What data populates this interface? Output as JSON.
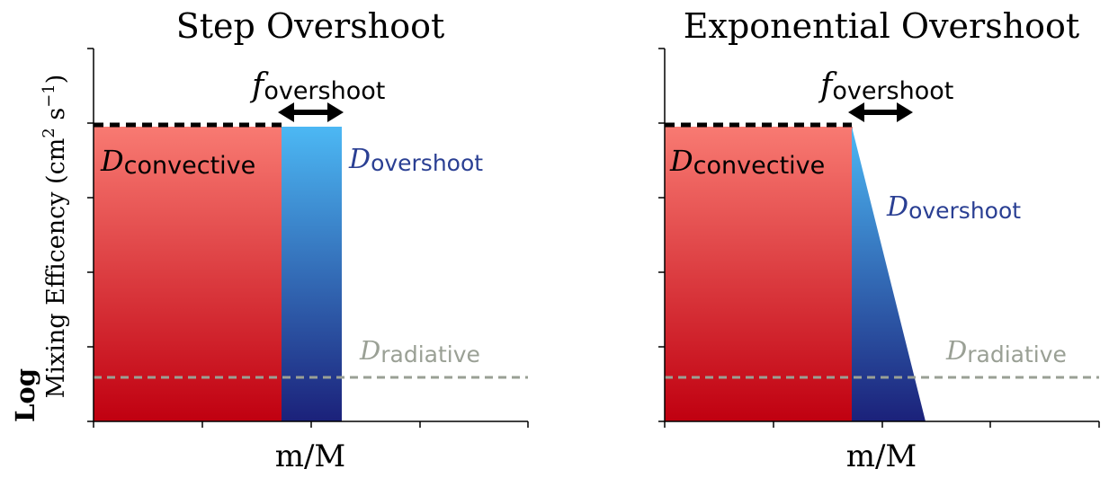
{
  "ylabel_line1": "Log",
  "ylabel_line2": "Mixing Efficency (cm",
  "ylabel_sup1": "2",
  "ylabel_mid": " s",
  "ylabel_sup2": "−1",
  "ylabel_end": ")",
  "colors": {
    "convective_top": "#f87a72",
    "convective_bottom": "#c00010",
    "overshoot_top": "#4cb8f4",
    "overshoot_bottom": "#1b217a",
    "overshoot_label": "#2a3f93",
    "radiative": "#9aa095",
    "dashed_top": "#000000"
  },
  "panels": [
    {
      "title": "Step Overshoot",
      "xlabel": "m/M",
      "f_label_main": "f",
      "f_label_sub": "overshoot",
      "d_convective_main": "D",
      "d_convective_sub": "convective",
      "d_overshoot_main": "D",
      "d_overshoot_sub": "overshoot",
      "d_radiative_main": "D",
      "d_radiative_sub": "radiative"
    },
    {
      "title": "Exponential Overshoot",
      "xlabel": "m/M",
      "f_label_main": "f",
      "f_label_sub": "overshoot",
      "d_convective_main": "D",
      "d_convective_sub": "convective",
      "d_overshoot_main": "D",
      "d_overshoot_sub": "overshoot",
      "d_radiative_main": "D",
      "d_radiative_sub": "radiative"
    }
  ]
}
